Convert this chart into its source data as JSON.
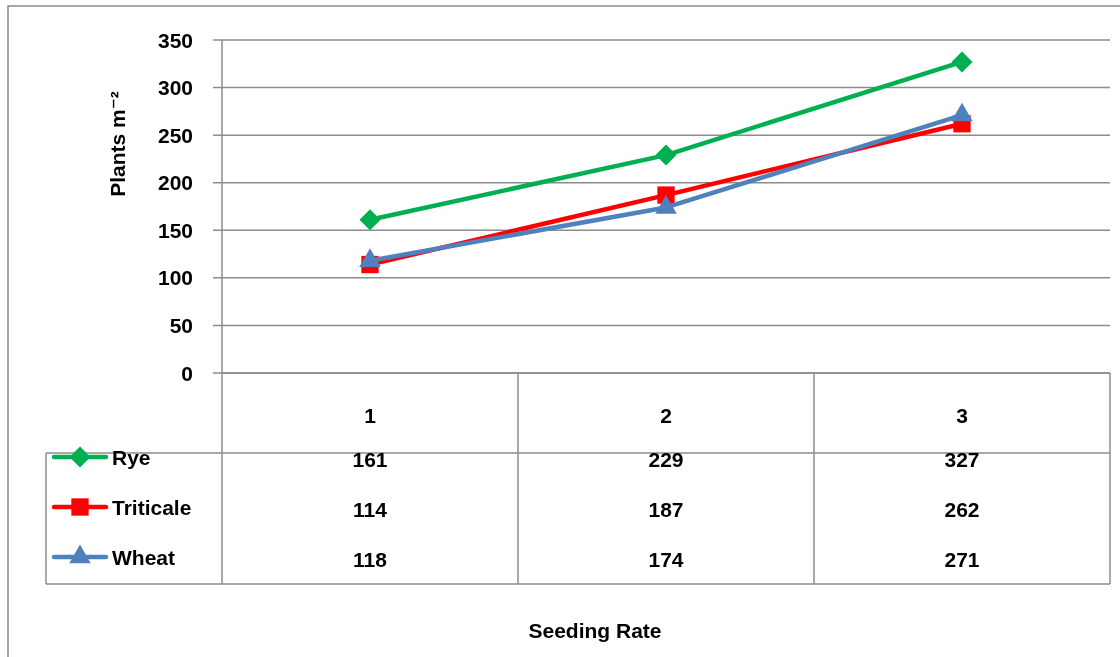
{
  "chart_data": {
    "type": "line",
    "ylabel": "Plants m⁻²",
    "annotations": [
      "Seeding Rate"
    ],
    "categories": [
      "1",
      "2",
      "3"
    ],
    "series": [
      {
        "name": "Rye",
        "color": "#00b050",
        "marker": "diamond",
        "values": [
          161,
          229,
          327
        ]
      },
      {
        "name": "Triticale",
        "color": "#ff0000",
        "marker": "square",
        "values": [
          114,
          187,
          262
        ]
      },
      {
        "name": "Wheat",
        "color": "#4f81bd",
        "marker": "triangle",
        "values": [
          118,
          174,
          271
        ]
      }
    ],
    "ylim": [
      0,
      350
    ],
    "yticks": [
      0,
      50,
      100,
      150,
      200,
      250,
      300,
      350
    ],
    "grid": "y",
    "legend": "bottom",
    "data_labels": true,
    "line_style": "solid"
  }
}
